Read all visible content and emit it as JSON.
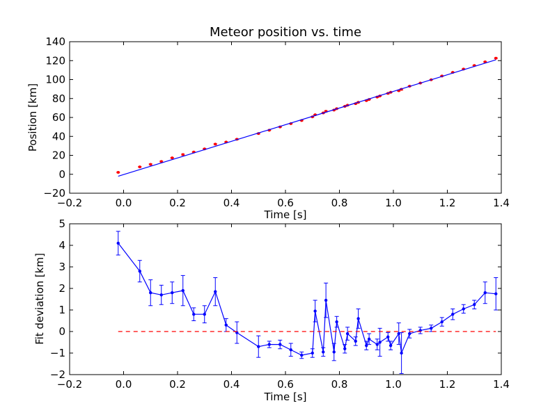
{
  "chart_data": [
    {
      "type": "scatter",
      "title": "Meteor position vs. time",
      "xlabel": "Time [s]",
      "ylabel": "Position [km]",
      "xlim": [
        -0.2,
        1.4
      ],
      "ylim": [
        -20,
        140
      ],
      "xticks": [
        -0.2,
        0.0,
        0.2,
        0.4,
        0.6,
        0.8,
        1.0,
        1.2,
        1.4
      ],
      "xtick_labels": [
        "−0.2",
        "0.0",
        "0.2",
        "0.4",
        "0.6",
        "0.8",
        "1.0",
        "1.2",
        "1.4"
      ],
      "yticks": [
        -20,
        0,
        20,
        40,
        60,
        80,
        100,
        120,
        140
      ],
      "ytick_labels": [
        "−20",
        "0",
        "20",
        "40",
        "60",
        "80",
        "100",
        "120",
        "140"
      ],
      "grid": false,
      "series": [
        {
          "kind": "points-with-errorbars",
          "color": "#ff0000",
          "x": [
            -0.02,
            0.06,
            0.1,
            0.14,
            0.18,
            0.22,
            0.26,
            0.3,
            0.34,
            0.38,
            0.42,
            0.5,
            0.54,
            0.58,
            0.62,
            0.66,
            0.7,
            0.71,
            0.74,
            0.75,
            0.78,
            0.79,
            0.82,
            0.83,
            0.86,
            0.87,
            0.9,
            0.91,
            0.94,
            0.95,
            0.98,
            0.99,
            1.02,
            1.03,
            1.06,
            1.1,
            1.14,
            1.18,
            1.22,
            1.26,
            1.3,
            1.34,
            1.38
          ],
          "y": [
            2.0,
            7.8,
            10.5,
            13.5,
            17.3,
            20.8,
            23.5,
            26.8,
            31.8,
            34.0,
            37.0,
            43.0,
            46.5,
            50.0,
            53.5,
            56.8,
            60.6,
            62.8,
            64.8,
            66.5,
            67.8,
            69.3,
            71.7,
            72.9,
            74.6,
            76.0,
            77.8,
            79.0,
            81.6,
            82.7,
            85.4,
            86.6,
            88.3,
            89.7,
            93.0,
            96.3,
            99.8,
            103.8,
            107.6,
            111.1,
            114.9,
            118.7,
            122.6
          ],
          "yerr": [
            0.5,
            0.5,
            0.6,
            0.5,
            0.5,
            0.6,
            0.4,
            0.4,
            0.6,
            0.4,
            0.5,
            0.5,
            0.3,
            0.3,
            0.3,
            0.4,
            0.3,
            0.4,
            0.4,
            0.7,
            0.4,
            0.3,
            0.3,
            0.3,
            0.4,
            0.4,
            0.3,
            0.3,
            0.4,
            0.3,
            0.5,
            0.3,
            0.5,
            0.8,
            0.3,
            0.2,
            0.2,
            0.3,
            0.3,
            0.3,
            0.3,
            0.5,
            0.6
          ]
        },
        {
          "kind": "fit-line",
          "color": "#0000ff",
          "x": [
            -0.02,
            1.38
          ],
          "y": [
            -2.1,
            120.9
          ]
        }
      ]
    },
    {
      "type": "line",
      "xlabel": "Time [s]",
      "ylabel": "Fit deviation [km]",
      "xlim": [
        -0.2,
        1.4
      ],
      "ylim": [
        -2,
        5
      ],
      "xticks": [
        -0.2,
        0.0,
        0.2,
        0.4,
        0.6,
        0.8,
        1.0,
        1.2,
        1.4
      ],
      "xtick_labels": [
        "−0.2",
        "0.0",
        "0.2",
        "0.4",
        "0.6",
        "0.8",
        "1.0",
        "1.2",
        "1.4"
      ],
      "yticks": [
        -2,
        -1,
        0,
        1,
        2,
        3,
        4,
        5
      ],
      "ytick_labels": [
        "−2",
        "−1",
        "0",
        "1",
        "2",
        "3",
        "4",
        "5"
      ],
      "grid": false,
      "series": [
        {
          "kind": "line-with-errorbars",
          "color": "#0000ff",
          "x": [
            -0.02,
            0.06,
            0.1,
            0.14,
            0.18,
            0.22,
            0.26,
            0.3,
            0.34,
            0.38,
            0.42,
            0.5,
            0.54,
            0.58,
            0.62,
            0.66,
            0.7,
            0.71,
            0.74,
            0.75,
            0.78,
            0.79,
            0.82,
            0.83,
            0.86,
            0.87,
            0.9,
            0.91,
            0.94,
            0.95,
            0.98,
            0.99,
            1.02,
            1.03,
            1.06,
            1.1,
            1.14,
            1.18,
            1.22,
            1.26,
            1.3,
            1.34,
            1.38
          ],
          "y": [
            4.1,
            2.8,
            1.8,
            1.7,
            1.8,
            1.9,
            0.8,
            0.8,
            1.85,
            0.3,
            -0.05,
            -0.7,
            -0.6,
            -0.6,
            -0.85,
            -1.1,
            -1.0,
            0.95,
            -0.95,
            1.45,
            -0.95,
            0.45,
            -0.8,
            -0.1,
            -0.45,
            0.6,
            -0.65,
            -0.35,
            -0.6,
            -0.5,
            -0.25,
            -0.65,
            -0.1,
            -1.0,
            -0.1,
            0.05,
            0.15,
            0.45,
            0.8,
            1.05,
            1.25,
            1.8,
            1.75
          ],
          "yerr": [
            0.55,
            0.5,
            0.6,
            0.45,
            0.5,
            0.7,
            0.3,
            0.4,
            0.65,
            0.3,
            0.5,
            0.5,
            0.15,
            0.2,
            0.3,
            0.15,
            0.2,
            0.5,
            0.2,
            0.8,
            0.4,
            0.25,
            0.2,
            0.3,
            0.2,
            0.45,
            0.2,
            0.25,
            0.25,
            0.65,
            0.2,
            0.2,
            0.5,
            0.95,
            0.2,
            0.15,
            0.15,
            0.2,
            0.25,
            0.2,
            0.2,
            0.5,
            0.75
          ]
        },
        {
          "kind": "reference-line",
          "style": "dashed",
          "color": "#ff0000",
          "x": [
            -0.02,
            1.38
          ],
          "y": [
            0,
            0
          ]
        }
      ]
    }
  ]
}
